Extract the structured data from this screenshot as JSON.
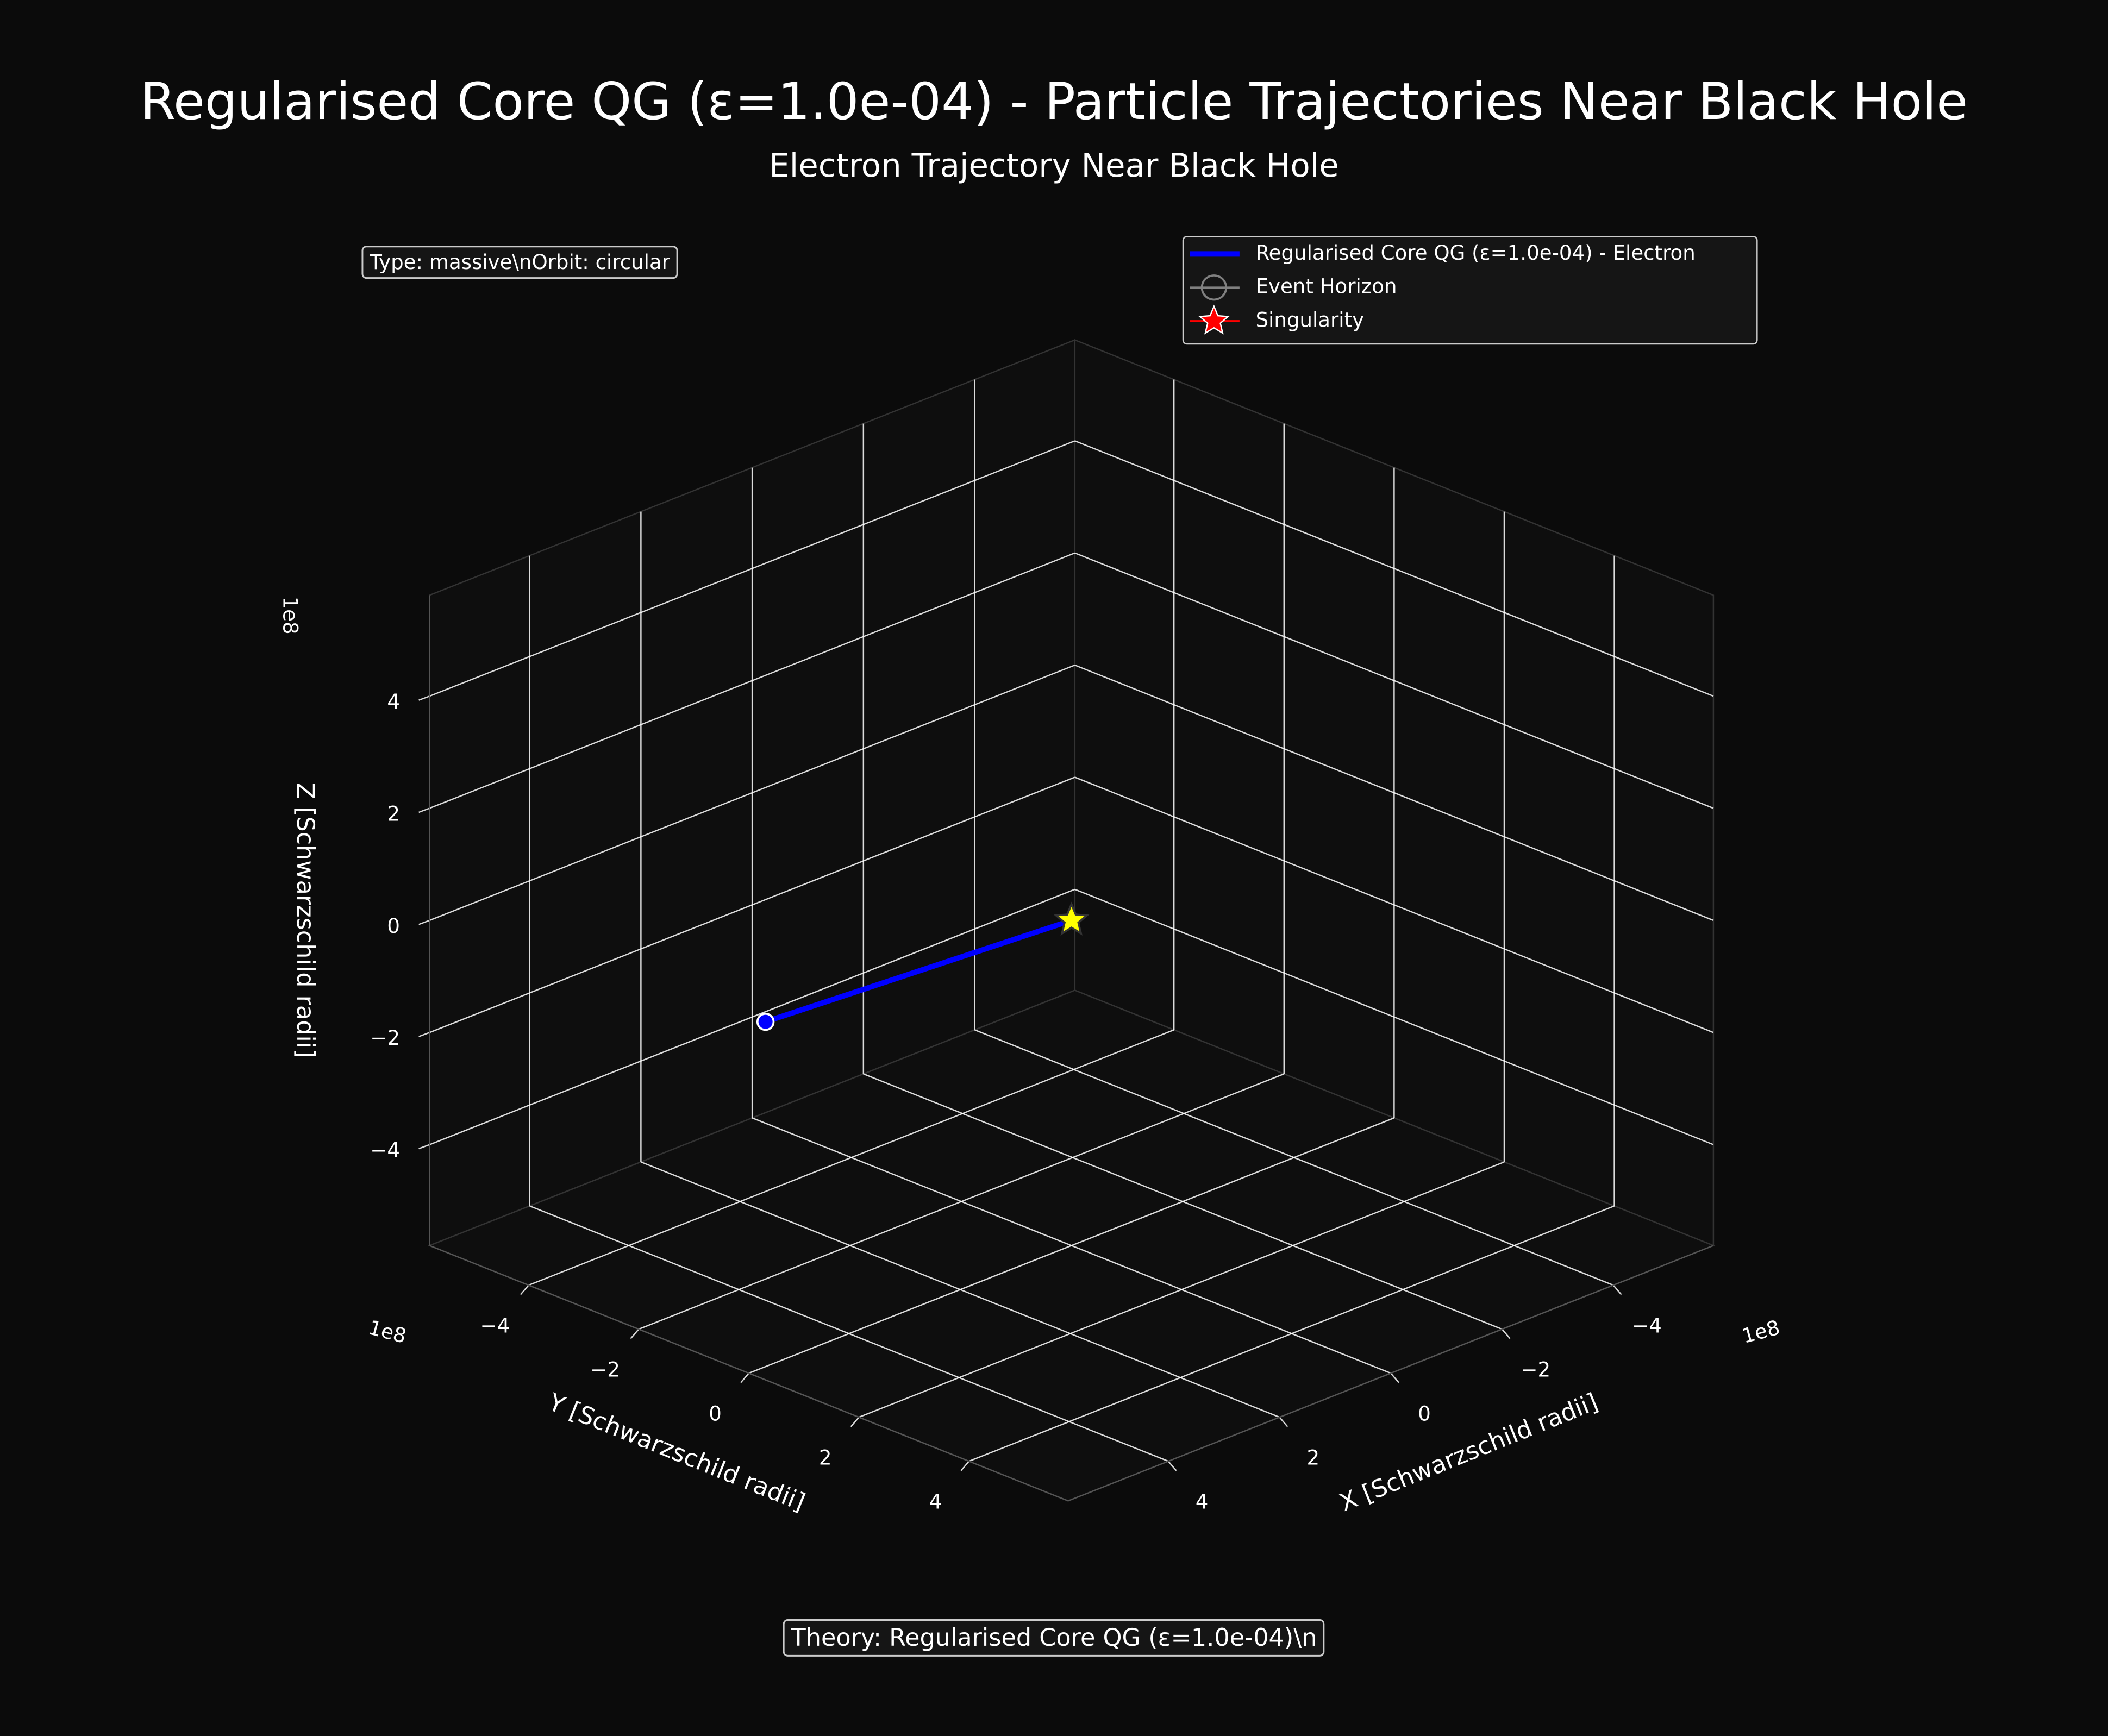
{
  "chart_data": {
    "type": "line3d",
    "title": "Regularised Core QG (ε=1.0e-04) - Particle Trajectories Near Black Hole",
    "subtitle": "Electron Trajectory Near Black Hole",
    "xlabel": "X [Schwarzschild radii]",
    "ylabel": "Y [Schwarzschild radii]",
    "zlabel": "Z [Schwarzschild radii]",
    "x_offset_label": "1e8",
    "y_offset_label": "1e8",
    "z_offset_label": "1e8",
    "xlim": [
      -580000000,
      580000000
    ],
    "ylim": [
      -580000000,
      580000000
    ],
    "zlim": [
      -580000000,
      580000000
    ],
    "xticks": [
      {
        "value": -400000000,
        "label": "−4"
      },
      {
        "value": -200000000,
        "label": "−2"
      },
      0,
      {
        "value": 200000000,
        "label": "2"
      },
      {
        "value": 400000000,
        "label": "4"
      }
    ],
    "yticks": [
      {
        "value": -400000000,
        "label": "−4"
      },
      {
        "value": -200000000,
        "label": "−2"
      },
      0,
      {
        "value": 200000000,
        "label": "2"
      },
      {
        "value": 400000000,
        "label": "4"
      }
    ],
    "zticks": [
      {
        "value": -400000000,
        "label": "−4"
      },
      {
        "value": -200000000,
        "label": "−2"
      },
      0,
      {
        "value": 200000000,
        "label": "2"
      },
      {
        "value": 400000000,
        "label": "4"
      }
    ],
    "grid": true,
    "legend_position": "upper right",
    "series": [
      {
        "name": "Regularised Core QG (ε=1.0e-04) - Electron",
        "color": "#0000ff",
        "x": [
          550000000,
          0
        ],
        "y": [
          0,
          0
        ],
        "z": [
          35000000,
          0
        ]
      }
    ],
    "markers": [
      {
        "name": "Event Horizon",
        "marker": "circle",
        "color": "#808080"
      },
      {
        "name": "Singularity",
        "marker": "star",
        "color": "#ffff00",
        "legend_color": "#ff0000",
        "x": [
          0
        ],
        "y": [
          0
        ],
        "z": [
          0
        ]
      }
    ],
    "annotations": [
      "Type: massive\\nOrbit: circular",
      "Theory: Regularised Core QG (ε=1.0e-04)\\n"
    ]
  }
}
